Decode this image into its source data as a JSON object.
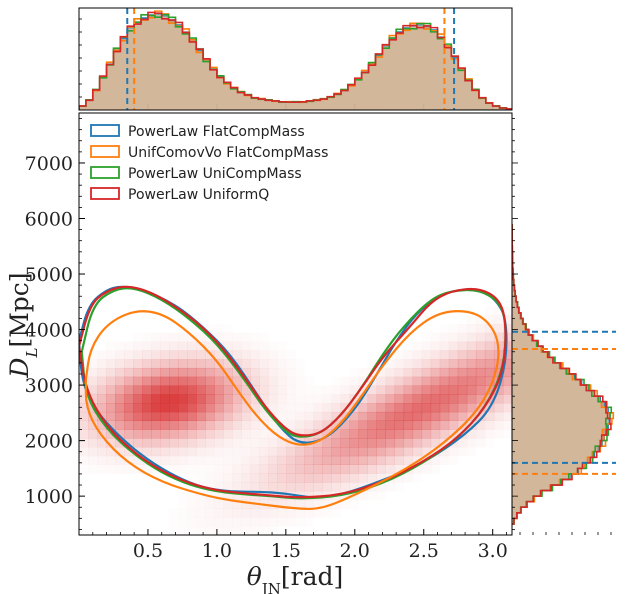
{
  "chart_data": {
    "type": "corner-2d-density",
    "xlabel": "θ_JN[rad]",
    "ylabel": "D_L[Mpc]",
    "xlim": [
      0.0,
      3.14
    ],
    "ylim": [
      300,
      7900
    ],
    "xticks": [
      0.5,
      1.0,
      1.5,
      2.0,
      2.5,
      3.0
    ],
    "xtick_labels": [
      "0.5",
      "1.0",
      "1.5",
      "2.0",
      "2.5",
      "3.0"
    ],
    "yticks": [
      1000,
      2000,
      3000,
      4000,
      5000,
      6000,
      7000
    ],
    "ytick_labels": [
      "1000",
      "2000",
      "3000",
      "4000",
      "5000",
      "6000",
      "7000"
    ],
    "legend_position": "top-left",
    "series": [
      {
        "name": "PowerLaw FlatCompMass",
        "color": "#1f77b4"
      },
      {
        "name": "UnifComovVo FlatCompMass",
        "color": "#ff7f0e"
      },
      {
        "name": "PowerLaw UniCompMass",
        "color": "#2ca02c"
      },
      {
        "name": "PowerLaw UniformQ",
        "color": "#d62728"
      }
    ],
    "density_peaks": [
      {
        "theta": 0.65,
        "dl": 2700,
        "weight": 1.0
      },
      {
        "theta": 2.5,
        "dl": 2600,
        "weight": 0.75
      }
    ],
    "contours": [
      {
        "series": "PowerLaw FlatCompMass",
        "points": [
          [
            0.0,
            3800
          ],
          [
            0.07,
            4450
          ],
          [
            0.2,
            4720
          ],
          [
            0.3,
            4780
          ],
          [
            0.45,
            4740
          ],
          [
            0.7,
            4450
          ],
          [
            0.9,
            4050
          ],
          [
            1.1,
            3550
          ],
          [
            1.3,
            2800
          ],
          [
            1.45,
            2250
          ],
          [
            1.6,
            1920
          ],
          [
            1.8,
            2030
          ],
          [
            2.0,
            2550
          ],
          [
            2.15,
            3150
          ],
          [
            2.3,
            3800
          ],
          [
            2.45,
            4300
          ],
          [
            2.6,
            4600
          ],
          [
            2.75,
            4720
          ],
          [
            2.9,
            4720
          ],
          [
            3.02,
            4550
          ],
          [
            3.1,
            4200
          ],
          [
            3.1,
            3400
          ],
          [
            3.0,
            2600
          ],
          [
            2.8,
            2100
          ],
          [
            2.5,
            1600
          ],
          [
            2.2,
            1280
          ],
          [
            1.9,
            1020
          ],
          [
            1.7,
            960
          ],
          [
            1.5,
            1050
          ],
          [
            1.3,
            1080
          ],
          [
            1.1,
            1080
          ],
          [
            0.9,
            1150
          ],
          [
            0.7,
            1350
          ],
          [
            0.5,
            1650
          ],
          [
            0.3,
            2050
          ],
          [
            0.1,
            2600
          ],
          [
            0.02,
            3100
          ],
          [
            0.0,
            3800
          ]
        ]
      },
      {
        "series": "PowerLaw UniCompMass",
        "points": [
          [
            0.02,
            3600
          ],
          [
            0.1,
            4450
          ],
          [
            0.25,
            4720
          ],
          [
            0.4,
            4760
          ],
          [
            0.6,
            4550
          ],
          [
            0.8,
            4200
          ],
          [
            1.0,
            3750
          ],
          [
            1.2,
            3100
          ],
          [
            1.35,
            2550
          ],
          [
            1.5,
            2150
          ],
          [
            1.6,
            2050
          ],
          [
            1.75,
            2120
          ],
          [
            1.9,
            2450
          ],
          [
            2.05,
            2950
          ],
          [
            2.2,
            3550
          ],
          [
            2.35,
            4050
          ],
          [
            2.55,
            4550
          ],
          [
            2.7,
            4700
          ],
          [
            2.9,
            4720
          ],
          [
            3.05,
            4500
          ],
          [
            3.1,
            4100
          ],
          [
            3.08,
            3300
          ],
          [
            2.95,
            2600
          ],
          [
            2.75,
            2050
          ],
          [
            2.5,
            1600
          ],
          [
            2.2,
            1220
          ],
          [
            1.9,
            1000
          ],
          [
            1.6,
            950
          ],
          [
            1.4,
            1000
          ],
          [
            1.2,
            1030
          ],
          [
            1.0,
            1080
          ],
          [
            0.8,
            1200
          ],
          [
            0.6,
            1420
          ],
          [
            0.4,
            1750
          ],
          [
            0.2,
            2200
          ],
          [
            0.05,
            2800
          ],
          [
            0.02,
            3600
          ]
        ]
      },
      {
        "series": "PowerLaw UniformQ",
        "points": [
          [
            0.0,
            3700
          ],
          [
            0.08,
            4450
          ],
          [
            0.2,
            4700
          ],
          [
            0.35,
            4800
          ],
          [
            0.55,
            4650
          ],
          [
            0.8,
            4250
          ],
          [
            1.0,
            3800
          ],
          [
            1.2,
            3150
          ],
          [
            1.35,
            2600
          ],
          [
            1.5,
            2200
          ],
          [
            1.6,
            2080
          ],
          [
            1.75,
            2120
          ],
          [
            1.9,
            2450
          ],
          [
            2.05,
            2950
          ],
          [
            2.2,
            3500
          ],
          [
            2.4,
            4050
          ],
          [
            2.55,
            4500
          ],
          [
            2.7,
            4700
          ],
          [
            2.9,
            4750
          ],
          [
            3.05,
            4550
          ],
          [
            3.1,
            4100
          ],
          [
            3.08,
            3250
          ],
          [
            2.95,
            2600
          ],
          [
            2.75,
            2050
          ],
          [
            2.5,
            1620
          ],
          [
            2.2,
            1250
          ],
          [
            1.9,
            1020
          ],
          [
            1.6,
            970
          ],
          [
            1.4,
            1010
          ],
          [
            1.2,
            1050
          ],
          [
            1.0,
            1100
          ],
          [
            0.8,
            1230
          ],
          [
            0.6,
            1450
          ],
          [
            0.4,
            1780
          ],
          [
            0.2,
            2250
          ],
          [
            0.05,
            2900
          ],
          [
            0.0,
            3700
          ]
        ]
      },
      {
        "series": "UnifComovVo FlatCompMass",
        "points": [
          [
            0.05,
            3100
          ],
          [
            0.08,
            3650
          ],
          [
            0.2,
            4100
          ],
          [
            0.4,
            4350
          ],
          [
            0.6,
            4300
          ],
          [
            0.8,
            3950
          ],
          [
            1.0,
            3450
          ],
          [
            1.15,
            2900
          ],
          [
            1.3,
            2400
          ],
          [
            1.45,
            2050
          ],
          [
            1.6,
            1900
          ],
          [
            1.75,
            1980
          ],
          [
            1.9,
            2300
          ],
          [
            2.05,
            2800
          ],
          [
            2.2,
            3350
          ],
          [
            2.4,
            3950
          ],
          [
            2.6,
            4300
          ],
          [
            2.8,
            4350
          ],
          [
            2.95,
            4200
          ],
          [
            3.05,
            3800
          ],
          [
            3.03,
            3200
          ],
          [
            2.9,
            2550
          ],
          [
            2.65,
            1950
          ],
          [
            2.35,
            1450
          ],
          [
            2.0,
            1020
          ],
          [
            1.75,
            760
          ],
          [
            1.55,
            780
          ],
          [
            1.3,
            860
          ],
          [
            1.1,
            920
          ],
          [
            0.9,
            1020
          ],
          [
            0.6,
            1250
          ],
          [
            0.35,
            1600
          ],
          [
            0.15,
            2100
          ],
          [
            0.05,
            2600
          ],
          [
            0.05,
            3100
          ]
        ]
      }
    ],
    "marginal_theta": {
      "bins": [
        0.0,
        0.05,
        0.1,
        0.15,
        0.2,
        0.25,
        0.3,
        0.35,
        0.4,
        0.45,
        0.5,
        0.55,
        0.6,
        0.65,
        0.7,
        0.75,
        0.8,
        0.85,
        0.9,
        0.95,
        1.0,
        1.05,
        1.1,
        1.15,
        1.2,
        1.25,
        1.3,
        1.35,
        1.4,
        1.45,
        1.5,
        1.55,
        1.6,
        1.65,
        1.7,
        1.75,
        1.8,
        1.85,
        1.9,
        1.95,
        2.0,
        2.05,
        2.1,
        2.15,
        2.2,
        2.25,
        2.3,
        2.35,
        2.4,
        2.45,
        2.5,
        2.55,
        2.6,
        2.65,
        2.7,
        2.75,
        2.8,
        2.85,
        2.9,
        2.95,
        3.0,
        3.05,
        3.1
      ],
      "counts": [
        0.04,
        0.1,
        0.2,
        0.33,
        0.46,
        0.6,
        0.72,
        0.82,
        0.88,
        0.92,
        0.95,
        0.96,
        0.94,
        0.9,
        0.85,
        0.78,
        0.7,
        0.6,
        0.5,
        0.41,
        0.33,
        0.27,
        0.22,
        0.18,
        0.15,
        0.12,
        0.11,
        0.1,
        0.09,
        0.08,
        0.08,
        0.08,
        0.08,
        0.09,
        0.1,
        0.11,
        0.13,
        0.16,
        0.2,
        0.25,
        0.31,
        0.38,
        0.46,
        0.55,
        0.64,
        0.72,
        0.78,
        0.82,
        0.84,
        0.85,
        0.84,
        0.8,
        0.73,
        0.64,
        0.53,
        0.41,
        0.3,
        0.2,
        0.12,
        0.07,
        0.04,
        0.02,
        0.01
      ],
      "quantile_lines": [
        {
          "series": "PowerLaw FlatCompMass",
          "value": 0.35
        },
        {
          "series": "PowerLaw FlatCompMass",
          "value": 2.72
        },
        {
          "series": "UnifComovVo FlatCompMass",
          "value": 0.4
        },
        {
          "series": "UnifComovVo FlatCompMass",
          "value": 2.65
        }
      ]
    },
    "marginal_dl": {
      "bins": [
        500,
        600,
        700,
        800,
        900,
        1000,
        1100,
        1200,
        1300,
        1400,
        1500,
        1600,
        1700,
        1800,
        1900,
        2000,
        2100,
        2200,
        2300,
        2400,
        2500,
        2600,
        2700,
        2800,
        2900,
        3000,
        3100,
        3200,
        3300,
        3400,
        3500,
        3600,
        3700,
        3800,
        3900,
        4000,
        4100,
        4200,
        4300,
        4400,
        4500,
        4600,
        4700,
        4800,
        4900,
        5000,
        5100,
        5200,
        5300,
        5400,
        5500,
        5600,
        5700,
        5800
      ],
      "counts": [
        0.02,
        0.05,
        0.09,
        0.15,
        0.22,
        0.3,
        0.4,
        0.5,
        0.6,
        0.68,
        0.74,
        0.8,
        0.84,
        0.88,
        0.92,
        0.94,
        0.96,
        0.98,
        0.99,
        1.0,
        0.98,
        0.95,
        0.9,
        0.84,
        0.78,
        0.71,
        0.64,
        0.57,
        0.5,
        0.43,
        0.37,
        0.31,
        0.26,
        0.21,
        0.17,
        0.14,
        0.11,
        0.09,
        0.07,
        0.055,
        0.042,
        0.032,
        0.024,
        0.018,
        0.013,
        0.01,
        0.007,
        0.005,
        0.004,
        0.003,
        0.002,
        0.0015,
        0.001,
        0.0005
      ],
      "quantile_lines": [
        {
          "series": "PowerLaw FlatCompMass",
          "value": 1600
        },
        {
          "series": "PowerLaw FlatCompMass",
          "value": 3960
        },
        {
          "series": "UnifComovVo FlatCompMass",
          "value": 1400
        },
        {
          "series": "UnifComovVo FlatCompMass",
          "value": 3650
        }
      ]
    }
  }
}
